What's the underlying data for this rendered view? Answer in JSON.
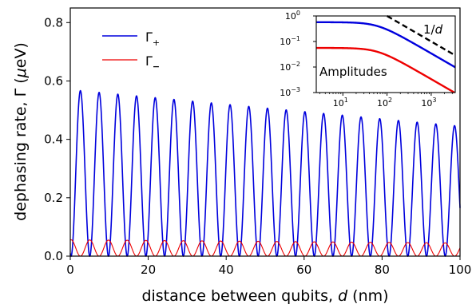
{
  "chart_data": {
    "main": {
      "type": "line",
      "xlabel_prefix": "distance between qubits, ",
      "xlabel_var": "d",
      "xlabel_suffix": " (nm)",
      "ylabel_prefix": "dephasing rate, Γ (",
      "ylabel_var": "μ",
      "ylabel_suffix": "eV)",
      "xlim": [
        0,
        100
      ],
      "ylim": [
        0,
        0.85
      ],
      "xticks": [
        0,
        20,
        40,
        60,
        80,
        100
      ],
      "xtick_labels": [
        "0",
        "20",
        "40",
        "60",
        "80",
        "100"
      ],
      "yticks": [
        0.0,
        0.2,
        0.4,
        0.6,
        0.8
      ],
      "ytick_labels": [
        "0.0",
        "0.2",
        "0.4",
        "0.6",
        "0.8"
      ],
      "legend_position": "upper-left",
      "series": [
        {
          "name": "Γ+",
          "label_base": "Γ",
          "label_sub": "+",
          "color": "#0000dd",
          "period": 4.8,
          "phase": 2.6,
          "amp_start": 0.57,
          "amp_end": 0.445,
          "floor": 0.0
        },
        {
          "name": "Γ−",
          "label_base": "Γ",
          "label_sub": "−",
          "color": "#ee0000",
          "period": 4.8,
          "phase": 0.2,
          "amp_start": 0.056,
          "amp_end": 0.045,
          "floor": 0.0
        }
      ]
    },
    "inset": {
      "type": "line",
      "xscale": "log",
      "yscale": "log",
      "xlim": [
        2.5,
        3500
      ],
      "ylim": [
        0.001,
        1
      ],
      "xticks": [
        10,
        100,
        1000
      ],
      "xtick_labels": [
        "10",
        "10",
        "10"
      ],
      "xtick_exps": [
        "1",
        "2",
        "3"
      ],
      "yticks": [
        0.001,
        0.01,
        0.1,
        1
      ],
      "ytick_labels": [
        "10",
        "10",
        "10",
        "10"
      ],
      "ytick_exps": [
        "−3",
        "−2",
        "−1",
        "0"
      ],
      "label": "Amplitudes",
      "annotation_prefix": "1/",
      "annotation_var": "d",
      "series": [
        {
          "name": "blue",
          "color": "#0000dd",
          "plateau": 0.57,
          "knee": 60,
          "slope": 1
        },
        {
          "name": "red",
          "color": "#ee0000",
          "plateau": 0.056,
          "knee": 60,
          "slope": 1
        },
        {
          "name": "1/d",
          "color": "#000000",
          "dashed": true,
          "a": 100,
          "slope": 1
        }
      ]
    }
  }
}
